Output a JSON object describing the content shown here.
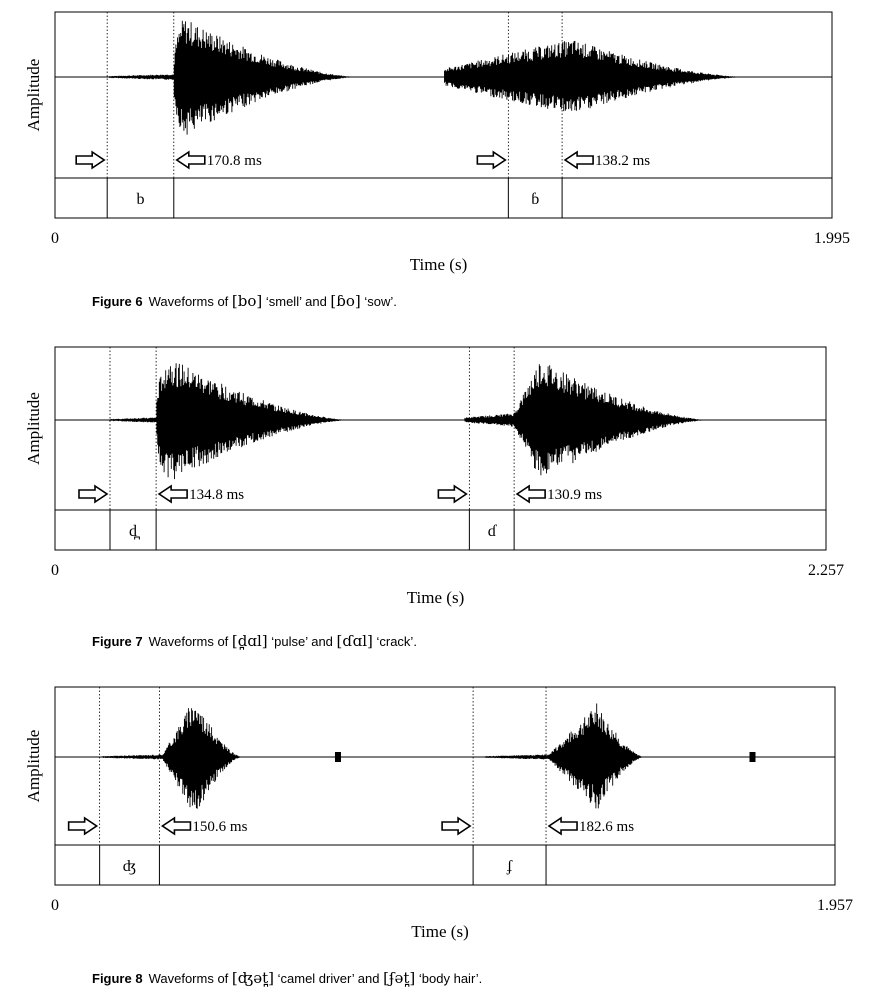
{
  "figures": [
    {
      "id": "fig6",
      "y_label": "Amplitude",
      "x_label": "Time (s)",
      "x_start": "0",
      "x_end": "1.995",
      "total_seconds": 1.995,
      "boundaries_s": [
        0.134,
        0.305,
        1.164,
        1.302
      ],
      "durations": [
        "170.8 ms",
        "138.2 ms"
      ],
      "segments": [
        "b",
        "ɓ"
      ],
      "waves": [
        {
          "noise_start": 0.14,
          "start": 0.305,
          "peak": 0.33,
          "end": 0.78,
          "amp": 0.98,
          "pre_amp": 0.05,
          "fast": true
        },
        {
          "noise_start": 1.0,
          "start": 1.17,
          "peak": 1.33,
          "end": 1.78,
          "amp": 0.62,
          "pre_amp": 0.4,
          "fast": false
        }
      ],
      "blips_s": [],
      "caption_label": "Figure 6",
      "caption_parts": [
        "Waveforms of ",
        "[bo]",
        " ‘smell’ and ",
        "[ɓo]",
        " ‘sow’."
      ]
    },
    {
      "id": "fig7",
      "y_label": "Amplitude",
      "x_label": "Time (s)",
      "x_start": "0",
      "x_end": "2.257",
      "total_seconds": 2.257,
      "boundaries_s": [
        0.161,
        0.296,
        1.213,
        1.344
      ],
      "durations": [
        "134.8 ms",
        "130.9 ms"
      ],
      "segments": [
        "d̪",
        "ɗ"
      ],
      "waves": [
        {
          "noise_start": 0.16,
          "start": 0.296,
          "peak": 0.33,
          "end": 0.87,
          "amp": 0.92,
          "pre_amp": 0.04,
          "fast": true
        },
        {
          "noise_start": 1.2,
          "start": 1.344,
          "peak": 1.42,
          "end": 1.92,
          "amp": 0.88,
          "pre_amp": 0.1,
          "fast": false
        }
      ],
      "blips_s": [],
      "caption_label": "Figure 7",
      "caption_parts": [
        "Waveforms of ",
        "[d̪ɑl]",
        " ‘pulse’ and ",
        "[ɗɑl]",
        " ‘crack’."
      ]
    },
    {
      "id": "fig8",
      "y_label": "Amplitude",
      "x_label": "Time (s)",
      "x_start": "0",
      "x_end": "1.957",
      "total_seconds": 1.957,
      "boundaries_s": [
        0.112,
        0.262,
        1.049,
        1.232
      ],
      "durations": [
        "150.6 ms",
        "182.6 ms"
      ],
      "segments": [
        "ʤ",
        "ʄ"
      ],
      "waves": [
        {
          "noise_start": 0.12,
          "start": 0.27,
          "peak": 0.35,
          "end": 0.47,
          "amp": 0.92,
          "pre_amp": 0.04,
          "fast": false
        },
        {
          "noise_start": 1.08,
          "start": 1.24,
          "peak": 1.36,
          "end": 1.48,
          "amp": 0.82,
          "pre_amp": 0.04,
          "fast": false
        }
      ],
      "blips_s": [
        0.71,
        1.75
      ],
      "caption_label": "Figure 8",
      "caption_parts": [
        "Waveforms of ",
        "[ʤət̪]",
        " ‘camel driver’ and ",
        "[ʄət̪]",
        " ‘body hair’."
      ]
    }
  ]
}
